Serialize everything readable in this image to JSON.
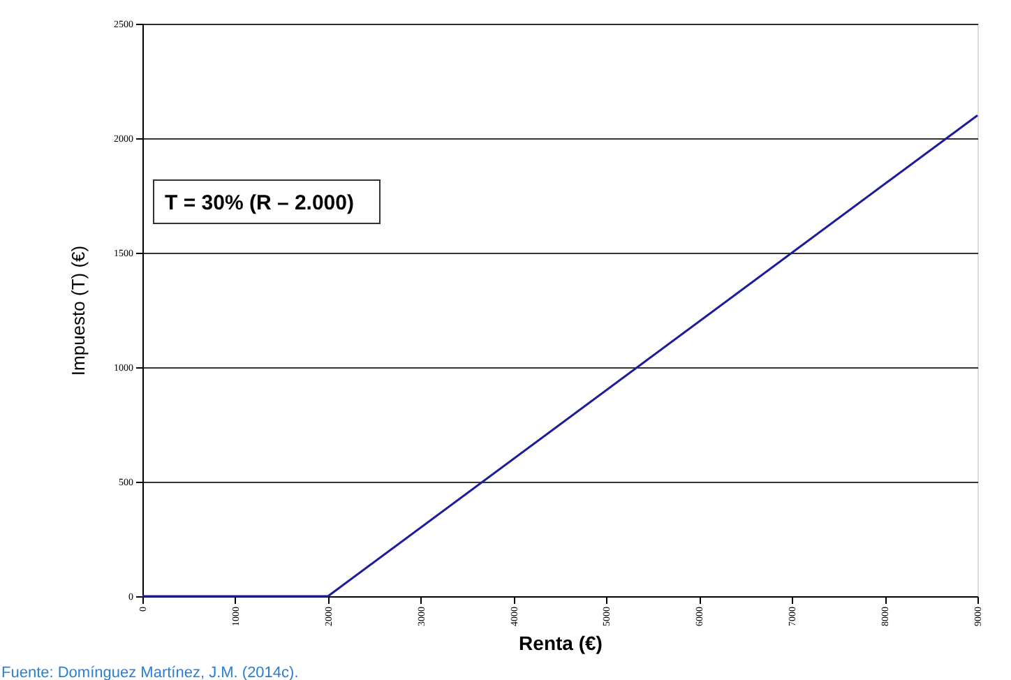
{
  "chart_data": {
    "type": "line",
    "xlabel": "Renta (€)",
    "ylabel": "Impuesto (T) (€)",
    "x": [
      0,
      2000,
      9000
    ],
    "series": [
      {
        "color": "#1c1c9c",
        "values": [
          0,
          0,
          2100
        ]
      }
    ],
    "xlim": [
      0,
      9000
    ],
    "xticks": [
      0,
      1000,
      2000,
      3000,
      4000,
      5000,
      6000,
      7000,
      8000,
      9000
    ],
    "ylim": [
      0,
      2500
    ],
    "yticks": [
      0,
      500,
      1000,
      1500,
      2000,
      2500
    ],
    "grid": "y",
    "marker": "none",
    "line_style": "solid",
    "annotations": [
      "T = 30% (R – 2.000)",
      "Fuente: Domínguez Martínez, J.M. (2014c)."
    ]
  }
}
